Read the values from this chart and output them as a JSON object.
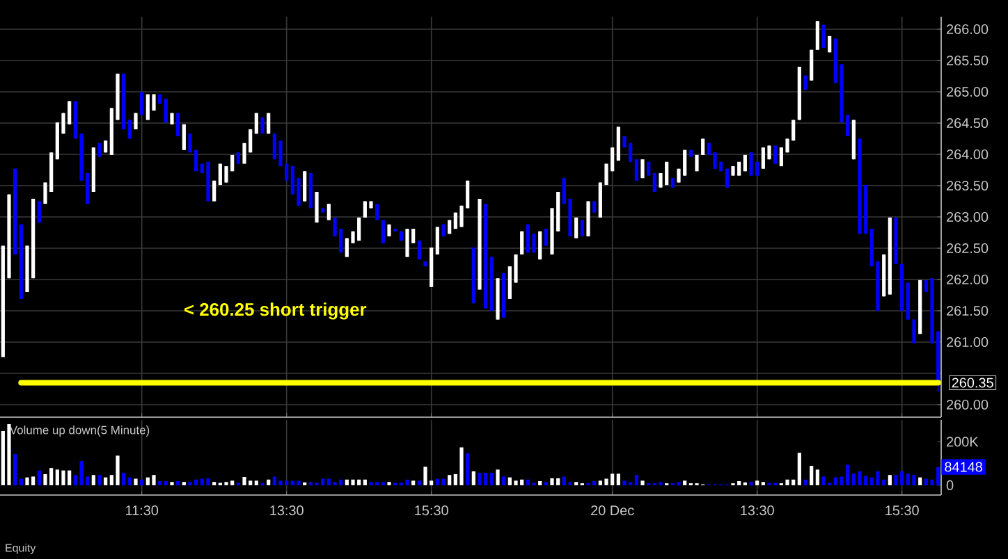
{
  "chart_data": [
    {
      "type": "candlestick",
      "categories": [
        null,
        null,
        null,
        null,
        null,
        null,
        null,
        null,
        null,
        null,
        null,
        null,
        null,
        null,
        null,
        null,
        null,
        null,
        null,
        null,
        null,
        null,
        null,
        null,
        null,
        null,
        null,
        null,
        null,
        null,
        null,
        null,
        null,
        null,
        null,
        null,
        null,
        null,
        null,
        null,
        null,
        null,
        null,
        null,
        null,
        null,
        null,
        null,
        null,
        null,
        null,
        null,
        null,
        null,
        null,
        null,
        null,
        null,
        null,
        null,
        null,
        null,
        null,
        null,
        null,
        null,
        null,
        null,
        null,
        null,
        null,
        null,
        null,
        null,
        null,
        null,
        null,
        null,
        null,
        null,
        null,
        null,
        null,
        null,
        null,
        null,
        null,
        null,
        null,
        null,
        null,
        null,
        null,
        null,
        null,
        null,
        null,
        null,
        null,
        null,
        null,
        null,
        null,
        null,
        null,
        null,
        null,
        null,
        null,
        null,
        null,
        null,
        null,
        null,
        null,
        null,
        null,
        null,
        null,
        null,
        null,
        null,
        null,
        null,
        null,
        null,
        null,
        null,
        null,
        null,
        null,
        null,
        null,
        null,
        null,
        null,
        null,
        null,
        null,
        null,
        null,
        null,
        null,
        null,
        null,
        null,
        null,
        null,
        null,
        null,
        null,
        null,
        null,
        null,
        null,
        null
      ],
      "ohlc": [
        [
          260.76,
          262.54,
          260.76,
          262.54
        ],
        [
          262.02,
          263.36,
          262.02,
          263.36
        ],
        [
          263.77,
          263.77,
          262.4,
          262.4
        ],
        [
          262.88,
          262.88,
          261.69,
          261.69
        ],
        [
          261.8,
          262.54,
          261.8,
          262.54
        ],
        [
          262.02,
          263.29,
          262.02,
          263.29
        ],
        [
          263.25,
          263.25,
          262.91,
          262.91
        ],
        [
          263.21,
          263.55,
          263.21,
          263.55
        ],
        [
          263.4,
          264.03,
          263.4,
          264.03
        ],
        [
          263.92,
          264.51,
          263.92,
          264.51
        ],
        [
          264.33,
          264.66,
          264.33,
          264.66
        ],
        [
          264.48,
          264.85,
          264.48,
          264.85
        ],
        [
          264.85,
          264.85,
          264.25,
          264.25
        ],
        [
          264.33,
          264.33,
          263.58,
          263.58
        ],
        [
          263.7,
          263.7,
          263.21,
          263.21
        ],
        [
          263.4,
          264.11,
          263.4,
          264.11
        ],
        [
          264.18,
          264.18,
          263.96,
          263.96
        ],
        [
          264.03,
          264.22,
          264.03,
          264.22
        ],
        [
          263.99,
          264.74,
          263.99,
          264.74
        ],
        [
          264.55,
          265.29,
          264.55,
          265.29
        ],
        [
          265.29,
          265.29,
          264.4,
          264.4
        ],
        [
          264.55,
          264.55,
          264.25,
          264.25
        ],
        [
          264.4,
          264.66,
          264.4,
          264.66
        ],
        [
          265.0,
          265.0,
          264.63,
          264.63
        ],
        [
          264.55,
          264.96,
          264.55,
          264.96
        ],
        [
          264.7,
          264.96,
          264.7,
          264.96
        ],
        [
          264.96,
          264.96,
          264.81,
          264.81
        ],
        [
          264.89,
          264.89,
          264.51,
          264.51
        ],
        [
          264.48,
          264.66,
          264.48,
          264.66
        ],
        [
          264.66,
          264.66,
          264.29,
          264.29
        ],
        [
          264.07,
          264.48,
          264.07,
          264.48
        ],
        [
          264.33,
          264.33,
          264.03,
          264.03
        ],
        [
          264.07,
          264.07,
          263.73,
          263.73
        ],
        [
          263.85,
          263.85,
          263.7,
          263.7
        ],
        [
          263.88,
          263.88,
          263.25,
          263.25
        ],
        [
          263.25,
          263.58,
          263.25,
          263.58
        ],
        [
          263.51,
          263.85,
          263.51,
          263.85
        ],
        [
          263.55,
          263.81,
          263.55,
          263.81
        ],
        [
          263.73,
          263.99,
          263.73,
          263.99
        ],
        [
          264.03,
          264.03,
          263.85,
          263.85
        ],
        [
          263.85,
          264.18,
          263.85,
          264.18
        ],
        [
          264.03,
          264.4,
          264.03,
          264.4
        ],
        [
          264.33,
          264.66,
          264.33,
          264.66
        ],
        [
          264.59,
          264.59,
          264.33,
          264.33
        ],
        [
          264.33,
          264.66,
          264.33,
          264.66
        ],
        [
          264.33,
          264.33,
          263.92,
          263.92
        ],
        [
          264.22,
          264.22,
          263.81,
          263.81
        ],
        [
          263.85,
          263.85,
          263.58,
          263.58
        ],
        [
          263.81,
          263.81,
          263.36,
          263.36
        ],
        [
          263.62,
          263.62,
          263.18,
          263.18
        ],
        [
          263.25,
          263.73,
          263.25,
          263.73
        ],
        [
          263.7,
          263.7,
          263.14,
          263.14
        ],
        [
          262.91,
          263.4,
          262.91,
          263.4
        ],
        [
          263.14,
          263.14,
          263.07,
          263.07
        ],
        [
          262.95,
          263.21,
          262.95,
          263.21
        ],
        [
          262.99,
          262.99,
          262.69,
          262.69
        ],
        [
          262.81,
          262.81,
          262.43,
          262.43
        ],
        [
          262.36,
          262.66,
          262.36,
          262.66
        ],
        [
          262.58,
          262.77,
          262.58,
          262.77
        ],
        [
          262.62,
          262.99,
          262.62,
          262.99
        ],
        [
          262.99,
          263.25,
          262.99,
          263.25
        ],
        [
          263.14,
          263.25,
          263.14,
          263.25
        ],
        [
          263.21,
          263.21,
          262.95,
          262.95
        ],
        [
          262.95,
          262.95,
          262.58,
          262.58
        ],
        [
          262.69,
          262.88,
          262.69,
          262.88
        ],
        [
          262.81,
          262.81,
          262.77,
          262.77
        ],
        [
          262.77,
          262.77,
          262.62,
          262.62
        ],
        [
          262.36,
          262.81,
          262.36,
          262.81
        ],
        [
          262.58,
          262.81,
          262.58,
          262.81
        ],
        [
          262.62,
          262.62,
          262.32,
          262.32
        ],
        [
          262.29,
          262.29,
          262.21,
          262.21
        ],
        [
          261.88,
          262.51,
          261.88,
          262.51
        ],
        [
          262.4,
          262.84,
          262.4,
          262.84
        ],
        [
          262.88,
          262.88,
          262.69,
          262.69
        ],
        [
          262.73,
          262.95,
          262.73,
          262.95
        ],
        [
          262.81,
          263.07,
          262.81,
          263.07
        ],
        [
          262.84,
          263.18,
          262.84,
          263.18
        ],
        [
          263.14,
          263.58,
          263.14,
          263.58
        ],
        [
          262.51,
          262.51,
          261.62,
          261.62
        ],
        [
          261.84,
          263.29,
          261.84,
          263.29
        ],
        [
          263.21,
          263.21,
          261.54,
          261.54
        ],
        [
          262.36,
          262.36,
          261.5,
          261.5
        ],
        [
          261.36,
          262.02,
          261.36,
          262.02
        ],
        [
          262.1,
          262.1,
          261.39,
          261.39
        ],
        [
          261.69,
          262.21,
          261.69,
          262.21
        ],
        [
          261.95,
          262.4,
          261.95,
          262.4
        ],
        [
          262.4,
          262.77,
          262.4,
          262.77
        ],
        [
          262.88,
          262.88,
          262.43,
          262.43
        ],
        [
          262.73,
          262.73,
          262.43,
          262.43
        ],
        [
          262.32,
          262.77,
          262.32,
          262.77
        ],
        [
          262.81,
          262.81,
          262.54,
          262.54
        ],
        [
          262.4,
          263.14,
          262.4,
          263.14
        ],
        [
          262.77,
          263.4,
          262.77,
          263.4
        ],
        [
          263.62,
          263.62,
          263.21,
          263.21
        ],
        [
          263.29,
          263.29,
          262.69,
          262.69
        ],
        [
          262.66,
          262.99,
          262.66,
          262.99
        ],
        [
          262.95,
          262.95,
          262.69,
          262.69
        ],
        [
          262.69,
          263.25,
          262.69,
          263.25
        ],
        [
          263.25,
          263.25,
          263.07,
          263.07
        ],
        [
          262.99,
          263.55,
          262.99,
          263.55
        ],
        [
          263.51,
          263.85,
          263.51,
          263.85
        ],
        [
          263.73,
          264.11,
          263.73,
          264.11
        ],
        [
          263.9,
          264.44,
          263.9,
          264.44
        ],
        [
          264.29,
          264.29,
          264.11,
          264.11
        ],
        [
          264.18,
          264.18,
          263.88,
          263.88
        ],
        [
          263.92,
          263.92,
          263.58,
          263.58
        ],
        [
          263.62,
          263.92,
          263.62,
          263.92
        ],
        [
          263.88,
          263.88,
          263.66,
          263.66
        ],
        [
          263.7,
          263.7,
          263.4,
          263.4
        ],
        [
          263.47,
          263.7,
          263.47,
          263.7
        ],
        [
          263.51,
          263.88,
          263.51,
          263.88
        ],
        [
          263.62,
          263.62,
          263.47,
          263.47
        ],
        [
          263.55,
          263.77,
          263.55,
          263.77
        ],
        [
          263.66,
          264.07,
          263.66,
          264.07
        ],
        [
          264.07,
          264.07,
          263.96,
          263.96
        ],
        [
          263.73,
          263.99,
          263.73,
          263.99
        ],
        [
          263.99,
          264.25,
          263.99,
          264.25
        ],
        [
          264.18,
          264.18,
          263.99,
          263.99
        ],
        [
          264.03,
          264.03,
          263.77,
          263.77
        ],
        [
          263.88,
          263.88,
          263.73,
          263.73
        ],
        [
          263.77,
          263.77,
          263.47,
          263.47
        ],
        [
          263.66,
          263.81,
          263.66,
          263.81
        ],
        [
          263.66,
          263.88,
          263.66,
          263.88
        ],
        [
          263.73,
          263.99,
          263.73,
          263.99
        ],
        [
          264.03,
          264.03,
          263.66,
          263.66
        ],
        [
          263.88,
          263.88,
          263.66,
          263.66
        ],
        [
          263.77,
          264.11,
          263.77,
          264.11
        ],
        [
          263.92,
          264.14,
          263.92,
          264.14
        ],
        [
          264.14,
          264.14,
          263.85,
          263.85
        ],
        [
          263.81,
          264.11,
          263.81,
          264.11
        ],
        [
          264.03,
          264.25,
          264.03,
          264.25
        ],
        [
          264.22,
          264.55,
          264.22,
          264.55
        ],
        [
          264.55,
          265.4,
          264.55,
          265.4
        ],
        [
          265.26,
          265.26,
          265.03,
          265.03
        ],
        [
          265.18,
          265.67,
          265.18,
          265.67
        ],
        [
          265.67,
          266.13,
          265.67,
          266.13
        ],
        [
          266.07,
          266.07,
          265.7,
          265.7
        ],
        [
          265.63,
          265.89,
          265.63,
          265.89
        ],
        [
          265.85,
          265.85,
          265.14,
          265.14
        ],
        [
          265.44,
          265.44,
          264.51,
          264.51
        ],
        [
          264.63,
          264.63,
          264.29,
          264.29
        ],
        [
          263.92,
          264.55,
          263.92,
          264.55
        ],
        [
          264.25,
          264.25,
          262.73,
          262.73
        ],
        [
          263.51,
          263.51,
          262.73,
          262.73
        ],
        [
          262.81,
          262.81,
          262.21,
          262.21
        ],
        [
          262.29,
          262.29,
          261.5,
          261.5
        ],
        [
          261.73,
          262.4,
          261.73,
          262.4
        ],
        [
          261.76,
          262.99,
          261.76,
          262.99
        ],
        [
          262.99,
          262.99,
          262.25,
          262.25
        ],
        [
          262.25,
          262.25,
          261.5,
          261.5
        ],
        [
          261.95,
          261.95,
          261.36,
          261.36
        ],
        [
          261.36,
          261.36,
          260.98,
          260.98
        ],
        [
          261.13,
          261.99,
          261.13,
          261.99
        ],
        [
          261.99,
          261.99,
          261.8,
          261.8
        ],
        [
          262.02,
          262.02,
          260.98,
          260.98
        ],
        [
          261.17,
          261.17,
          260.2,
          260.35
        ]
      ],
      "colors": [
        "#ffffff",
        "#ffffff",
        "#0000ff",
        "#0000ff",
        "#ffffff",
        "#ffffff",
        "#0000ff",
        "#ffffff",
        "#ffffff",
        "#ffffff",
        "#ffffff",
        "#ffffff",
        "#0000ff",
        "#0000ff",
        "#0000ff",
        "#ffffff",
        "#0000ff",
        "#ffffff",
        "#ffffff",
        "#ffffff",
        "#0000ff",
        "#0000ff",
        "#ffffff",
        "#0000ff",
        "#ffffff",
        "#ffffff",
        "#0000ff",
        "#0000ff",
        "#ffffff",
        "#0000ff",
        "#ffffff",
        "#0000ff",
        "#0000ff",
        "#0000ff",
        "#0000ff",
        "#ffffff",
        "#ffffff",
        "#ffffff",
        "#ffffff",
        "#0000ff",
        "#ffffff",
        "#ffffff",
        "#ffffff",
        "#0000ff",
        "#ffffff",
        "#0000ff",
        "#0000ff",
        "#0000ff",
        "#0000ff",
        "#0000ff",
        "#ffffff",
        "#0000ff",
        "#ffffff",
        "#0000ff",
        "#ffffff",
        "#0000ff",
        "#0000ff",
        "#ffffff",
        "#ffffff",
        "#ffffff",
        "#ffffff",
        "#ffffff",
        "#0000ff",
        "#0000ff",
        "#ffffff",
        "#0000ff",
        "#0000ff",
        "#ffffff",
        "#ffffff",
        "#0000ff",
        "#0000ff",
        "#ffffff",
        "#ffffff",
        "#0000ff",
        "#ffffff",
        "#ffffff",
        "#ffffff",
        "#ffffff",
        "#0000ff",
        "#ffffff",
        "#0000ff",
        "#0000ff",
        "#ffffff",
        "#0000ff",
        "#ffffff",
        "#ffffff",
        "#ffffff",
        "#0000ff",
        "#0000ff",
        "#ffffff",
        "#0000ff",
        "#ffffff",
        "#ffffff",
        "#0000ff",
        "#0000ff",
        "#ffffff",
        "#0000ff",
        "#ffffff",
        "#0000ff",
        "#ffffff",
        "#ffffff",
        "#ffffff",
        "#ffffff",
        "#0000ff",
        "#0000ff",
        "#0000ff",
        "#ffffff",
        "#0000ff",
        "#0000ff",
        "#ffffff",
        "#ffffff",
        "#0000ff",
        "#ffffff",
        "#ffffff",
        "#0000ff",
        "#ffffff",
        "#ffffff",
        "#0000ff",
        "#0000ff",
        "#0000ff",
        "#0000ff",
        "#ffffff",
        "#ffffff",
        "#ffffff",
        "#0000ff",
        "#0000ff",
        "#ffffff",
        "#ffffff",
        "#0000ff",
        "#ffffff",
        "#ffffff",
        "#ffffff",
        "#ffffff",
        "#0000ff",
        "#ffffff",
        "#ffffff",
        "#0000ff",
        "#ffffff",
        "#0000ff",
        "#0000ff",
        "#0000ff",
        "#ffffff",
        "#0000ff",
        "#0000ff",
        "#0000ff",
        "#0000ff",
        "#ffffff",
        "#ffffff",
        "#0000ff",
        "#0000ff",
        "#0000ff",
        "#0000ff",
        "#ffffff",
        "#0000ff",
        "#0000ff",
        "#0000ff"
      ],
      "ylim": [
        259.8,
        266.2
      ],
      "yticks": [
        {
          "value": 260,
          "label": "260.00"
        },
        {
          "value": 260.5,
          "label": null
        },
        {
          "value": 261,
          "label": "261.00"
        },
        {
          "value": 261.5,
          "label": "261.50"
        },
        {
          "value": 262,
          "label": "262.00"
        },
        {
          "value": 262.5,
          "label": "262.50"
        },
        {
          "value": 263,
          "label": "263.00"
        },
        {
          "value": 263.5,
          "label": "263.50"
        },
        {
          "value": 264,
          "label": "264.00"
        },
        {
          "value": 264.5,
          "label": "264.50"
        },
        {
          "value": 265,
          "label": "265.00"
        },
        {
          "value": 265.5,
          "label": "265.50"
        },
        {
          "value": 266,
          "label": "266.00"
        }
      ],
      "grid": true,
      "tick_labels": "y",
      "ref_lines": [
        {
          "axis": "y",
          "value": 260.35,
          "label": "260.35",
          "color": "#ffff00"
        }
      ],
      "annotations": [
        "< 260.25 short trigger"
      ]
    },
    {
      "type": "bar",
      "title": "Volume up down(5 Minute)",
      "categories": [
        null,
        null,
        null,
        null,
        null,
        null,
        null,
        null,
        null,
        null,
        null,
        null,
        null,
        null,
        null,
        null,
        null,
        null,
        null,
        null,
        null,
        null,
        null,
        "11:30",
        null,
        null,
        null,
        null,
        null,
        null,
        null,
        null,
        null,
        null,
        null,
        null,
        null,
        null,
        null,
        null,
        null,
        null,
        null,
        null,
        null,
        null,
        null,
        "13:30",
        null,
        null,
        null,
        null,
        null,
        null,
        null,
        null,
        null,
        null,
        null,
        null,
        null,
        null,
        null,
        null,
        null,
        null,
        null,
        null,
        null,
        null,
        null,
        "15:30",
        null,
        null,
        null,
        null,
        null,
        null,
        null,
        null,
        null,
        null,
        null,
        null,
        null,
        null,
        null,
        null,
        null,
        null,
        null,
        null,
        null,
        null,
        null,
        null,
        null,
        null,
        null,
        null,
        null,
        "20 Dec",
        null,
        null,
        null,
        null,
        null,
        null,
        null,
        null,
        null,
        null,
        null,
        null,
        null,
        null,
        null,
        null,
        null,
        null,
        null,
        null,
        null,
        null,
        null,
        "13:30",
        null,
        null,
        null,
        null,
        null,
        null,
        null,
        null,
        null,
        null,
        null,
        null,
        null,
        null,
        null,
        null,
        null,
        null,
        null,
        null,
        null,
        null,
        null,
        "15:30",
        null,
        null,
        null,
        null,
        null,
        null
      ],
      "values": [
        249000,
        281000,
        143000,
        30000,
        36000,
        40000,
        68000,
        51000,
        79000,
        72000,
        68000,
        68000,
        47000,
        111000,
        40000,
        47000,
        47000,
        36000,
        47000,
        136000,
        57000,
        36000,
        30000,
        26000,
        36000,
        47000,
        19000,
        19000,
        15000,
        19000,
        15000,
        15000,
        26000,
        30000,
        32000,
        15000,
        11000,
        15000,
        21000,
        11000,
        38000,
        21000,
        21000,
        9000,
        26000,
        40000,
        21000,
        21000,
        21000,
        21000,
        13000,
        15000,
        11000,
        30000,
        30000,
        15000,
        26000,
        26000,
        26000,
        26000,
        26000,
        15000,
        15000,
        15000,
        15000,
        11000,
        11000,
        26000,
        21000,
        21000,
        85000,
        21000,
        30000,
        30000,
        47000,
        51000,
        174000,
        147000,
        64000,
        57000,
        57000,
        57000,
        72000,
        40000,
        36000,
        21000,
        26000,
        26000,
        11000,
        19000,
        15000,
        32000,
        32000,
        40000,
        15000,
        15000,
        9000,
        9000,
        19000,
        21000,
        30000,
        53000,
        53000,
        21000,
        15000,
        47000,
        21000,
        9000,
        9000,
        15000,
        9000,
        9000,
        15000,
        21000,
        9000,
        9000,
        4000,
        4000,
        4000,
        4000,
        4000,
        9000,
        19000,
        13000,
        15000,
        21000,
        15000,
        11000,
        11000,
        9000,
        26000,
        26000,
        149000,
        26000,
        89000,
        72000,
        40000,
        11000,
        36000,
        40000,
        94000,
        53000,
        64000,
        43000,
        36000,
        64000,
        26000,
        47000,
        47000,
        64000,
        53000,
        47000,
        36000,
        30000,
        26000,
        84148
      ],
      "colors": [
        "#ffffff",
        "#ffffff",
        "#0000ff",
        "#0000ff",
        "#ffffff",
        "#ffffff",
        "#0000ff",
        "#ffffff",
        "#ffffff",
        "#ffffff",
        "#ffffff",
        "#ffffff",
        "#0000ff",
        "#0000ff",
        "#0000ff",
        "#ffffff",
        "#0000ff",
        "#ffffff",
        "#ffffff",
        "#ffffff",
        "#0000ff",
        "#0000ff",
        "#ffffff",
        "#0000ff",
        "#ffffff",
        "#ffffff",
        "#0000ff",
        "#0000ff",
        "#ffffff",
        "#0000ff",
        "#ffffff",
        "#0000ff",
        "#0000ff",
        "#0000ff",
        "#0000ff",
        "#ffffff",
        "#ffffff",
        "#ffffff",
        "#ffffff",
        "#0000ff",
        "#ffffff",
        "#ffffff",
        "#ffffff",
        "#0000ff",
        "#ffffff",
        "#0000ff",
        "#0000ff",
        "#0000ff",
        "#0000ff",
        "#0000ff",
        "#ffffff",
        "#0000ff",
        "#0000ff",
        "#0000ff",
        "#0000ff",
        "#0000ff",
        "#0000ff",
        "#ffffff",
        "#ffffff",
        "#ffffff",
        "#ffffff",
        "#0000ff",
        "#0000ff",
        "#0000ff",
        "#ffffff",
        "#0000ff",
        "#0000ff",
        "#0000ff",
        "#ffffff",
        "#0000ff",
        "#ffffff",
        "#ffffff",
        "#0000ff",
        "#0000ff",
        "#ffffff",
        "#ffffff",
        "#ffffff",
        "#0000ff",
        "#ffffff",
        "#0000ff",
        "#0000ff",
        "#0000ff",
        "#ffffff",
        "#0000ff",
        "#ffffff",
        "#ffffff",
        "#ffffff",
        "#0000ff",
        "#0000ff",
        "#ffffff",
        "#0000ff",
        "#ffffff",
        "#ffffff",
        "#0000ff",
        "#0000ff",
        "#ffffff",
        "#ffffff",
        "#0000ff",
        "#0000ff",
        "#ffffff",
        "#ffffff",
        "#ffffff",
        "#ffffff",
        "#0000ff",
        "#0000ff",
        "#0000ff",
        "#ffffff",
        "#0000ff",
        "#0000ff",
        "#0000ff",
        "#ffffff",
        "#0000ff",
        "#0000ff",
        "#ffffff",
        "#ffffff",
        "#ffffff",
        "#ffffff",
        "#0000ff",
        "#0000ff",
        "#0000ff",
        "#0000ff",
        "#ffffff",
        "#ffffff",
        "#ffffff",
        "#0000ff",
        "#ffffff",
        "#ffffff",
        "#0000ff",
        "#0000ff",
        "#ffffff",
        "#ffffff",
        "#ffffff",
        "#ffffff",
        "#0000ff",
        "#ffffff",
        "#ffffff",
        "#0000ff",
        "#0000ff",
        "#0000ff",
        "#0000ff",
        "#0000ff",
        "#0000ff",
        "#0000ff",
        "#0000ff",
        "#0000ff",
        "#0000ff",
        "#0000ff",
        "#ffffff",
        "#0000ff",
        "#0000ff",
        "#0000ff",
        "#0000ff",
        "#ffffff",
        "#0000ff",
        "#0000ff",
        "#0000ff"
      ],
      "ylim": [
        -45000,
        300000
      ],
      "yticks": [
        0,
        {
          "value": 200000,
          "label": "200K"
        }
      ],
      "grid": "x",
      "annotations": [
        "84148",
        "Equity"
      ]
    }
  ]
}
